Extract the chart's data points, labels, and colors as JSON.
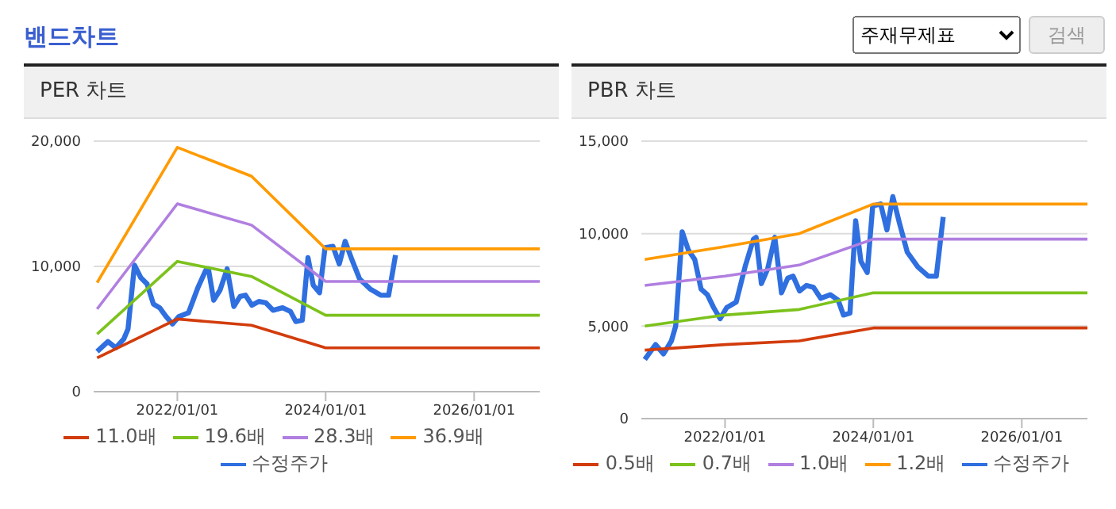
{
  "chart_data": [
    {
      "type": "line",
      "title": "PER 차트",
      "annotations": [
        "밴드차트",
        "주재무제표",
        "검색"
      ],
      "xlim": [
        "2020-11-15",
        "2026-11-20"
      ],
      "xticks": [
        {
          "value": "2022-01-01",
          "label": "2022/01/01"
        },
        {
          "value": "2024-01-01",
          "label": "2024/01/01"
        },
        {
          "value": "2026-01-01",
          "label": "2026/01/01"
        }
      ],
      "ylim": [
        0,
        20000
      ],
      "yticks": [
        0,
        {
          "value": 10000,
          "label": "10,000"
        },
        {
          "value": 20000,
          "label": "20,000"
        }
      ],
      "grid": "y",
      "legend": "bottom",
      "series": [
        {
          "name": "수정주가",
          "color": "#2f6fe0",
          "x": [
            "2020-12-02",
            "2021-01-24",
            "2021-03-04",
            "2021-04-12",
            "2021-05-03",
            "2021-06-04",
            "2021-07-05",
            "2021-08-05",
            "2021-09-05",
            "2021-10-06",
            "2021-11-06",
            "2021-12-08",
            "2022-01-09",
            "2022-02-25",
            "2022-04-12",
            "2022-05-21",
            "2022-06-03",
            "2022-06-29",
            "2022-07-30",
            "2022-09-03",
            "2022-10-06",
            "2022-11-06",
            "2022-12-02",
            "2023-01-03",
            "2023-02-06",
            "2023-03-12",
            "2023-04-17",
            "2023-06-03",
            "2023-07-12",
            "2023-08-07",
            "2023-09-08",
            "2023-10-06",
            "2023-11-01",
            "2023-12-02",
            "2023-12-29",
            "2024-02-06",
            "2024-03-08",
            "2024-04-06",
            "2024-05-08",
            "2024-06-16",
            "2024-08-07",
            "2024-09-28",
            "2024-11-06",
            "2024-12-10"
          ],
          "values": [
            3200,
            4000,
            3500,
            4200,
            5000,
            10100,
            9100,
            8600,
            7000,
            6700,
            6000,
            5400,
            6000,
            6300,
            8300,
            9700,
            9800,
            7300,
            8100,
            9800,
            6800,
            7600,
            7700,
            6900,
            7200,
            7100,
            6500,
            6700,
            6400,
            5600,
            5700,
            10700,
            8500,
            7900,
            11500,
            11600,
            10200,
            12000,
            10600,
            9000,
            8200,
            7700,
            7700,
            10900
          ]
        },
        {
          "name": "11.0배",
          "color": "#d23c0c",
          "x": [
            "2020-12-02",
            "2022-01-01",
            "2023-01-01",
            "2024-01-01",
            "2026-11-20"
          ],
          "values": [
            2700,
            5800,
            5300,
            3500,
            3500
          ]
        },
        {
          "name": "19.6배",
          "color": "#7cc21c",
          "x": [
            "2020-12-02",
            "2022-01-01",
            "2023-01-01",
            "2024-01-01",
            "2026-11-20"
          ],
          "values": [
            4600,
            10400,
            9200,
            6100,
            6100
          ]
        },
        {
          "name": "28.3배",
          "color": "#b07fe0",
          "x": [
            "2020-12-02",
            "2022-01-01",
            "2023-01-01",
            "2024-01-01",
            "2026-11-20"
          ],
          "values": [
            6600,
            15000,
            13300,
            8800,
            8800
          ]
        },
        {
          "name": "36.9배",
          "color": "#ff9a00",
          "x": [
            "2020-12-02",
            "2022-01-01",
            "2023-01-01",
            "2024-01-01",
            "2026-11-20"
          ],
          "values": [
            8700,
            19500,
            17200,
            11400,
            11400
          ]
        }
      ]
    },
    {
      "type": "line",
      "title": "PBR 차트",
      "xlim": [
        "2020-11-15",
        "2026-11-20"
      ],
      "xticks": [
        {
          "value": "2022-01-01",
          "label": "2022/01/01"
        },
        {
          "value": "2024-01-01",
          "label": "2024/01/01"
        },
        {
          "value": "2026-01-01",
          "label": "2026/01/01"
        }
      ],
      "ylim": [
        0,
        15000
      ],
      "yticks": [
        0,
        {
          "value": 5000,
          "label": "5,000"
        },
        {
          "value": 10000,
          "label": "10,000"
        },
        {
          "value": 15000,
          "label": "15,000"
        }
      ],
      "grid": "y",
      "legend": "bottom",
      "series": [
        {
          "name": "수정주가",
          "color": "#2f6fe0",
          "x": [
            "2020-12-02",
            "2021-01-24",
            "2021-03-04",
            "2021-04-12",
            "2021-05-03",
            "2021-06-04",
            "2021-07-05",
            "2021-08-05",
            "2021-09-05",
            "2021-10-06",
            "2021-11-06",
            "2021-12-08",
            "2022-01-09",
            "2022-02-25",
            "2022-04-12",
            "2022-05-21",
            "2022-06-03",
            "2022-06-29",
            "2022-07-30",
            "2022-09-03",
            "2022-10-06",
            "2022-11-06",
            "2022-12-02",
            "2023-01-03",
            "2023-02-06",
            "2023-03-12",
            "2023-04-17",
            "2023-06-03",
            "2023-07-12",
            "2023-08-07",
            "2023-09-08",
            "2023-10-06",
            "2023-11-01",
            "2023-12-02",
            "2023-12-29",
            "2024-02-06",
            "2024-03-08",
            "2024-04-06",
            "2024-05-08",
            "2024-06-16",
            "2024-08-07",
            "2024-09-28",
            "2024-11-06",
            "2024-12-10"
          ],
          "values": [
            3200,
            4000,
            3500,
            4200,
            5000,
            10100,
            9100,
            8600,
            7000,
            6700,
            6000,
            5400,
            6000,
            6300,
            8300,
            9700,
            9800,
            7300,
            8100,
            9800,
            6800,
            7600,
            7700,
            6900,
            7200,
            7100,
            6500,
            6700,
            6400,
            5600,
            5700,
            10700,
            8500,
            7900,
            11500,
            11600,
            10200,
            12000,
            10600,
            9000,
            8200,
            7700,
            7700,
            10900
          ]
        },
        {
          "name": "0.5배",
          "color": "#d23c0c",
          "x": [
            "2020-12-02",
            "2022-01-01",
            "2023-01-01",
            "2024-01-01",
            "2026-11-20"
          ],
          "values": [
            3700,
            4000,
            4200,
            4900,
            4900
          ]
        },
        {
          "name": "0.7배",
          "color": "#7cc21c",
          "x": [
            "2020-12-02",
            "2022-01-01",
            "2023-01-01",
            "2024-01-01",
            "2026-11-20"
          ],
          "values": [
            5000,
            5600,
            5900,
            6800,
            6800
          ]
        },
        {
          "name": "1.0배",
          "color": "#b07fe0",
          "x": [
            "2020-12-02",
            "2022-01-01",
            "2023-01-01",
            "2024-01-01",
            "2026-11-20"
          ],
          "values": [
            7200,
            7700,
            8300,
            9700,
            9700
          ]
        },
        {
          "name": "1.2배",
          "color": "#ff9a00",
          "x": [
            "2020-12-02",
            "2022-01-01",
            "2023-01-01",
            "2024-01-01",
            "2026-11-20"
          ],
          "values": [
            8600,
            9300,
            10000,
            11600,
            11600
          ]
        }
      ]
    }
  ]
}
